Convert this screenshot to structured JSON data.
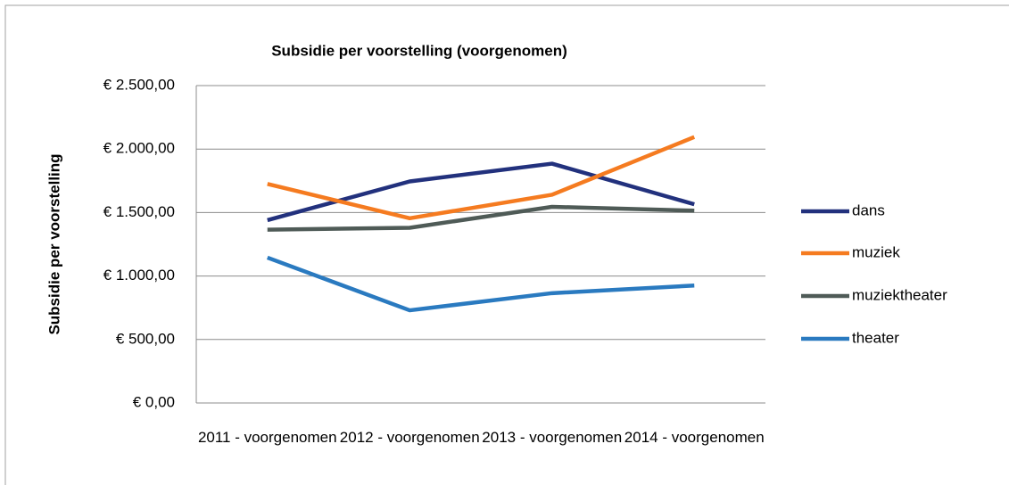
{
  "chart_data": {
    "type": "line",
    "title": "Subsidie per voorstelling (voorgenomen)",
    "y_label": "Subsidie per voorstelling",
    "categories": [
      "2011 - voorgenomen",
      "2012 - voorgenomen",
      "2013 - voorgenomen",
      "2014 - voorgenomen"
    ],
    "series": [
      {
        "name": "dans",
        "color": "#22317d",
        "values": [
          1440,
          1745,
          1885,
          1565
        ]
      },
      {
        "name": "muziek",
        "color": "#f57b20",
        "values": [
          1725,
          1455,
          1640,
          2095
        ]
      },
      {
        "name": "muziektheater",
        "color": "#4f5b57",
        "values": [
          1365,
          1380,
          1545,
          1515
        ]
      },
      {
        "name": "theater",
        "color": "#2a7ac0",
        "values": [
          1145,
          730,
          865,
          925
        ]
      }
    ],
    "ylim": [
      0,
      2500
    ],
    "yticks": [
      {
        "value": 0,
        "label": "€ 0,00"
      },
      {
        "value": 500,
        "label": "€ 500,00"
      },
      {
        "value": 1000,
        "label": "€ 1.000,00"
      },
      {
        "value": 1500,
        "label": "€ 1.500,00"
      },
      {
        "value": 2000,
        "label": "€ 2.000,00"
      },
      {
        "value": 2500,
        "label": "€ 2.500,00"
      }
    ],
    "grid": true,
    "legend": "right"
  }
}
